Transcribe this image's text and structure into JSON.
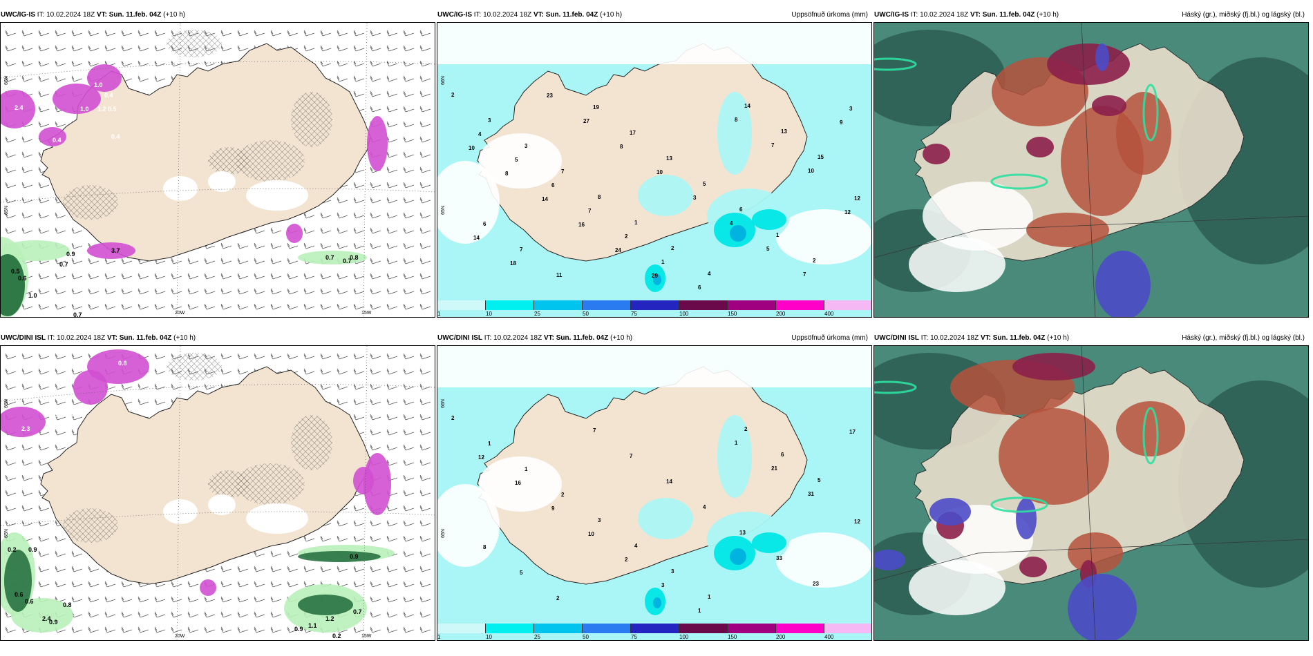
{
  "colors": {
    "land": "#f3e4d2",
    "precip_light": "#aaf5f5",
    "precip_mid": "#00e6e6",
    "precip_dark": "#00b4e0",
    "magenta": "#d24fd2",
    "purple": "#7a2a6e",
    "green_light": "#b9f0b9",
    "green_dark": "#1f6b3a",
    "cloud_teal": "#4a8a7a",
    "cloud_dark": "#2f5f55",
    "cloud_red": "#b5523c",
    "cloud_maroon": "#8c1f4a",
    "cloud_blue": "#4b4bc8",
    "cloud_green": "#2ee0a0"
  },
  "colorbar": {
    "ticks": [
      "1",
      "10",
      "25",
      "50",
      "75",
      "100",
      "150",
      "200",
      "400"
    ],
    "colors": [
      "#cff8f8",
      "#00f0f0",
      "#00c4ee",
      "#2b7bf0",
      "#2424c0",
      "#6a0a4a",
      "#a00080",
      "#ff00c8",
      "#f5b8f5"
    ]
  },
  "rows": [
    {
      "panels": [
        {
          "model": "UWC/IG-IS",
          "it_prefix": "IT:",
          "it": "10.02.2024 18Z",
          "vt_prefix": "VT:",
          "vt": "Sun. 11.feb. 04Z",
          "lead": "(+10 h)",
          "title": "",
          "lon_labels": [
            "20W",
            "15W"
          ],
          "lat_labels": [
            "66N",
            "65N"
          ],
          "values": [
            "2.4",
            "1.0",
            "1.0",
            "1.2",
            "0.4",
            "0.5",
            "0.4",
            "0.4",
            "3.7",
            "0.9",
            "0.7",
            "0.7",
            "0.8",
            "0.7",
            "0.7",
            "1.0",
            "0.6",
            "0.5"
          ]
        },
        {
          "model": "UWC/IG-IS",
          "it_prefix": "IT:",
          "it": "10.02.2024 18Z",
          "vt_prefix": "VT:",
          "vt": "Sun. 11.feb. 04Z",
          "lead": "(+10 h)",
          "title": "Uppsöfnuð úrkoma (mm)",
          "lat_labels": [
            "66N",
            "65N"
          ],
          "values": [
            "2",
            "3",
            "3",
            "7",
            "8",
            "1",
            "2",
            "4",
            "14",
            "13",
            "15",
            "12",
            "6",
            "7",
            "11",
            "19",
            "17",
            "13",
            "5",
            "6",
            "1",
            "2",
            "3",
            "4",
            "5",
            "6",
            "7",
            "2",
            "1",
            "6",
            "8",
            "7",
            "10",
            "12",
            "14",
            "18",
            "23",
            "27",
            "8",
            "10",
            "3",
            "4",
            "5",
            "7",
            "9",
            "10",
            "8",
            "14",
            "16",
            "24",
            "29"
          ]
        },
        {
          "model": "UWC/IG-IS",
          "it_prefix": "IT:",
          "it": "10.02.2024 18Z",
          "vt_prefix": "VT:",
          "vt": "Sun. 11.feb. 04Z",
          "lead": "(+10 h)",
          "title": "Háský (gr.), miðský (fj.bl.) og lágský (bl.)"
        }
      ]
    },
    {
      "panels": [
        {
          "model": "UWC/DINI ISL",
          "it_prefix": "IT:",
          "it": "10.02.2024 18Z",
          "vt_prefix": "VT:",
          "vt": "Sun. 11.feb. 04Z",
          "lead": "(+10 h)",
          "title": "",
          "lon_labels": [
            "20W",
            "15W"
          ],
          "lat_labels": [
            "66N",
            "65N"
          ],
          "values": [
            "0.8",
            "0.8",
            "0.5",
            "0.3",
            "2.3",
            "0.5",
            "0.5",
            "0.2",
            "0.9",
            "0.6",
            "0.6",
            "0.9",
            "0.2",
            "0.8",
            "2.4",
            "1.2",
            "1.1",
            "0.7",
            "0.9",
            "0.2",
            "0.9"
          ]
        },
        {
          "model": "UWC/DINI ISL",
          "it_prefix": "IT:",
          "it": "10.02.2024 18Z",
          "vt_prefix": "VT:",
          "vt": "Sun. 11.feb. 04Z",
          "lead": "(+10 h)",
          "title": "Uppsöfnuð úrkoma (mm)",
          "lat_labels": [
            "66N",
            "65N"
          ],
          "values": [
            "2",
            "1",
            "1",
            "2",
            "3",
            "4",
            "3",
            "1",
            "2",
            "6",
            "5",
            "12",
            "8",
            "5",
            "2",
            "7",
            "7",
            "14",
            "4",
            "13",
            "33",
            "23",
            "17",
            "12",
            "16",
            "9",
            "10",
            "2",
            "3",
            "1",
            "1",
            "21",
            "31"
          ]
        },
        {
          "model": "UWC/DINI ISL",
          "it_prefix": "IT:",
          "it": "10.02.2024 18Z",
          "vt_prefix": "VT:",
          "vt": "Sun. 11.feb. 04Z",
          "lead": "(+10 h)",
          "title": "Háský (gr.), miðský (fj.bl.) og lágský (bl.)"
        }
      ]
    }
  ]
}
